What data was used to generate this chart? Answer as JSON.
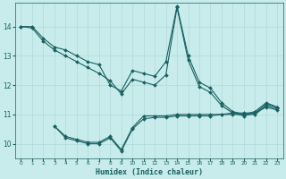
{
  "xlabel": "Humidex (Indice chaleur)",
  "ylabel": "",
  "background_color": "#c8ecec",
  "grid_color": "#b0d8d8",
  "line_color": "#1a6060",
  "xlim": [
    -0.5,
    23.5
  ],
  "ylim": [
    9.5,
    14.8
  ],
  "yticks": [
    10,
    11,
    12,
    13,
    14
  ],
  "xticks": [
    0,
    1,
    2,
    3,
    4,
    5,
    6,
    7,
    8,
    9,
    10,
    11,
    12,
    13,
    14,
    15,
    16,
    17,
    18,
    19,
    20,
    21,
    22,
    23
  ],
  "series1_x": [
    0,
    1,
    2,
    3,
    4,
    5,
    6,
    7,
    8,
    9,
    10,
    11,
    12,
    13,
    14,
    15,
    16,
    17,
    18,
    19,
    20,
    21,
    22,
    23
  ],
  "series1_y": [
    14.0,
    14.0,
    13.6,
    13.3,
    13.2,
    13.0,
    12.8,
    12.7,
    12.0,
    11.8,
    12.5,
    12.4,
    12.3,
    12.8,
    14.7,
    13.0,
    12.1,
    11.9,
    11.4,
    11.1,
    11.0,
    11.1,
    11.4,
    11.25
  ],
  "series2_x": [
    0,
    1,
    2,
    3,
    4,
    5,
    6,
    7,
    8,
    9,
    10,
    11,
    12,
    13,
    14,
    15,
    16,
    17,
    18,
    19,
    20,
    21,
    22,
    23
  ],
  "series2_y": [
    14.0,
    13.95,
    13.5,
    13.2,
    13.0,
    12.8,
    12.6,
    12.4,
    12.15,
    11.7,
    12.2,
    12.1,
    12.0,
    12.35,
    14.65,
    12.85,
    11.95,
    11.75,
    11.3,
    11.05,
    10.95,
    11.05,
    11.25,
    11.15
  ],
  "series3_x": [
    3,
    4,
    5,
    6,
    7,
    8,
    9,
    10,
    11,
    12,
    13,
    14,
    15,
    16,
    17,
    18,
    19,
    20,
    21,
    22,
    23
  ],
  "series3_y": [
    10.6,
    10.25,
    10.15,
    10.05,
    10.05,
    10.25,
    9.8,
    10.55,
    10.95,
    10.95,
    10.95,
    11.0,
    11.0,
    11.0,
    11.0,
    11.0,
    11.05,
    11.05,
    11.05,
    11.35,
    11.25
  ],
  "series4_x": [
    3,
    4,
    5,
    6,
    7,
    8,
    9,
    10,
    11,
    12,
    13,
    14,
    15,
    16,
    17,
    18,
    19,
    20,
    21,
    22,
    23
  ],
  "series4_y": [
    10.6,
    10.2,
    10.1,
    10.0,
    10.0,
    10.2,
    9.75,
    10.5,
    10.85,
    10.9,
    10.9,
    10.95,
    10.95,
    10.95,
    10.95,
    11.0,
    11.0,
    11.0,
    11.0,
    11.3,
    11.2
  ]
}
